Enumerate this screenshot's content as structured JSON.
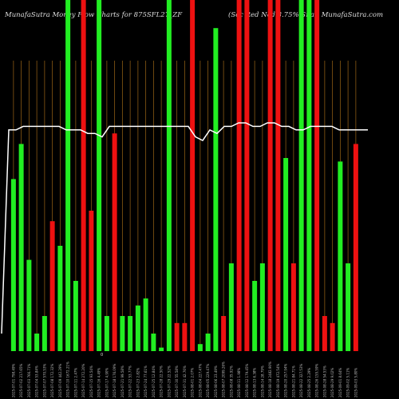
{
  "header": {
    "left": "MunafaSutra  Money Flow  Charts for 875SFL27_ZF",
    "right": "(Sec Red Ncd 8.75% Sr.a ) MunafaSutra.com"
  },
  "colors": {
    "up": "#22ee22",
    "down": "#ee1111",
    "grid": "#8a5a14",
    "line": "#ffffff",
    "zero_label": "#dddddd"
  },
  "chart_data": {
    "type": "bar",
    "title": "MunafaSutra  Money Flow  Charts for 875SFL27_ZF",
    "subtitle": "(Sec Red Ncd 8.75% Sr.a ) MunafaSutra.com",
    "baseline_label": "0",
    "categories": [
      "2025-07-01 798.49%",
      "2025-07-02 217.65%",
      "2025-07-03 766.71%",
      "2025-07-04 53.84%",
      "2025-07-07 570.53%",
      "2025-07-08 172.32%",
      "2025-07-09 442.29%",
      "2025-07-10 1672.21%",
      "2025-07-11 2.47%",
      "2025-07-14 272.20%",
      "2025-07-15 93.54%",
      "2025-07-16 4.49%",
      "2025-07-17 4.90%",
      "2025-07-18 176.09%",
      "2025-07-21 99.58%",
      "2025-07-22 53.77%",
      "2025-07-23 2.82%",
      "2025-07-24 77.61%",
      "2025-07-25 12.84%",
      "2025-07-28 22.50%",
      "2025-07-29 22.52%",
      "2025-07-30 55.58%",
      "2025-07-31 42.76%",
      "2025-08-01 2.07%",
      "2025-08-04 227.47%",
      "2025-08-05 229.47%",
      "2025-08-06 23.49%",
      "2025-08-07 2099.26%",
      "2025-08-08 35.92%",
      "2025-08-11 1.98%",
      "2025-08-12 179.45%",
      "2025-08-13 6.38%",
      "2025-08-14 28.79%",
      "2025-08-18 2482.90%",
      "2025-08-19 472.54%",
      "2025-08-20 257.94%",
      "2025-08-21 84.71%",
      "2025-08-22 327.53%",
      "2025-08-25 2.29%",
      "2025-08-26 155.59%",
      "2025-08-28 54.53%",
      "2025-08-29 9.02%",
      "2025-09-01 8.64%",
      "2025-09-02 5.11%",
      "2025-09-03 5.80%"
    ],
    "values": [
      49,
      59,
      26,
      5,
      10,
      37,
      30,
      100,
      20,
      100,
      40,
      100,
      10,
      62,
      10,
      10,
      13,
      15,
      5,
      1,
      100,
      8,
      8,
      100,
      2,
      5,
      92,
      10,
      25,
      100,
      100,
      20,
      25,
      100,
      100,
      55,
      25,
      100,
      100,
      100,
      10,
      8,
      54,
      25,
      59
    ],
    "directions": [
      "up",
      "up",
      "up",
      "up",
      "up",
      "down",
      "up",
      "up",
      "up",
      "down",
      "down",
      "up",
      "up",
      "down",
      "up",
      "up",
      "up",
      "up",
      "up",
      "up",
      "up",
      "down",
      "down",
      "down",
      "up",
      "up",
      "up",
      "down",
      "up",
      "down",
      "down",
      "up",
      "up",
      "down",
      "down",
      "up",
      "down",
      "up",
      "up",
      "down",
      "down",
      "down",
      "up",
      "up",
      "down"
    ],
    "line_values": [
      5,
      63,
      63,
      64,
      64,
      64,
      64,
      64,
      64,
      63,
      63,
      63,
      62,
      62,
      61,
      64,
      64,
      64,
      64,
      64,
      64,
      64,
      64,
      64,
      64,
      64,
      64,
      61,
      60,
      63,
      62,
      64,
      64,
      65,
      65,
      64,
      64,
      65,
      65,
      64,
      64,
      63,
      63,
      64,
      64,
      64,
      64,
      63,
      63,
      63,
      63,
      63
    ],
    "ylim": [
      0,
      100
    ],
    "grid": true,
    "legend": "none"
  }
}
